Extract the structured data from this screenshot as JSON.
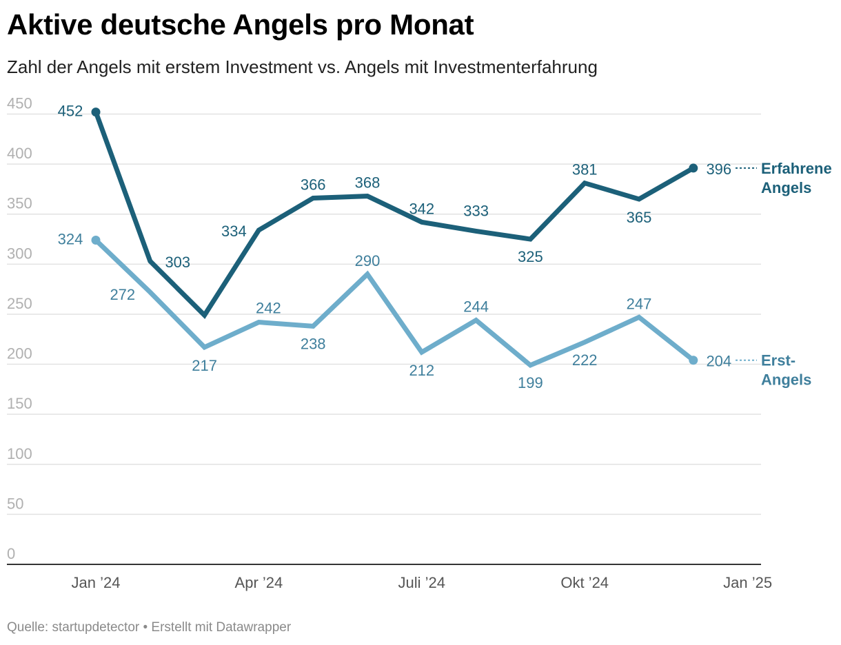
{
  "chart_data": {
    "type": "line",
    "title": "Aktive deutsche Angels pro Monat",
    "subtitle": "Zahl der Angels mit erstem Investment vs. Angels mit Investmenterfahrung",
    "source": "Quelle: startupdetector • Erstellt mit Datawrapper",
    "x": [
      "2024-01",
      "2024-02",
      "2024-03",
      "2024-04",
      "2024-05",
      "2024-06",
      "2024-07",
      "2024-08",
      "2024-09",
      "2024-10",
      "2024-11",
      "2024-12"
    ],
    "x_ticks": [
      {
        "pos": 0,
        "label": "Jan ’24"
      },
      {
        "pos": 3,
        "label": "Apr ’24"
      },
      {
        "pos": 6,
        "label": "Juli ’24"
      },
      {
        "pos": 9,
        "label": "Okt ’24"
      },
      {
        "pos": 12,
        "label": "Jan ’25"
      }
    ],
    "y_ticks": [
      0,
      50,
      100,
      150,
      200,
      250,
      300,
      350,
      400,
      450
    ],
    "ylim": [
      0,
      450
    ],
    "xlabel": "",
    "ylabel": "",
    "series": [
      {
        "name": "Erfahrene Angels",
        "legend": [
          "Erfahrene",
          "Angels"
        ],
        "color": "#1c6079",
        "values": [
          452,
          303,
          249,
          334,
          366,
          368,
          342,
          333,
          325,
          381,
          365,
          396
        ],
        "labels": [
          "452",
          "303",
          "",
          "334",
          "366",
          "368",
          "342",
          "333",
          "325",
          "381",
          "365",
          "396"
        ]
      },
      {
        "name": "Erst-Angels",
        "legend": [
          "Erst-",
          "Angels"
        ],
        "color": "#6eadcb",
        "label_color": "#3f7f9c",
        "values": [
          324,
          272,
          217,
          242,
          238,
          290,
          212,
          244,
          199,
          222,
          247,
          204
        ],
        "labels": [
          "324",
          "272",
          "217",
          "242",
          "238",
          "290",
          "212",
          "244",
          "199",
          "222",
          "247",
          "204"
        ]
      }
    ]
  }
}
